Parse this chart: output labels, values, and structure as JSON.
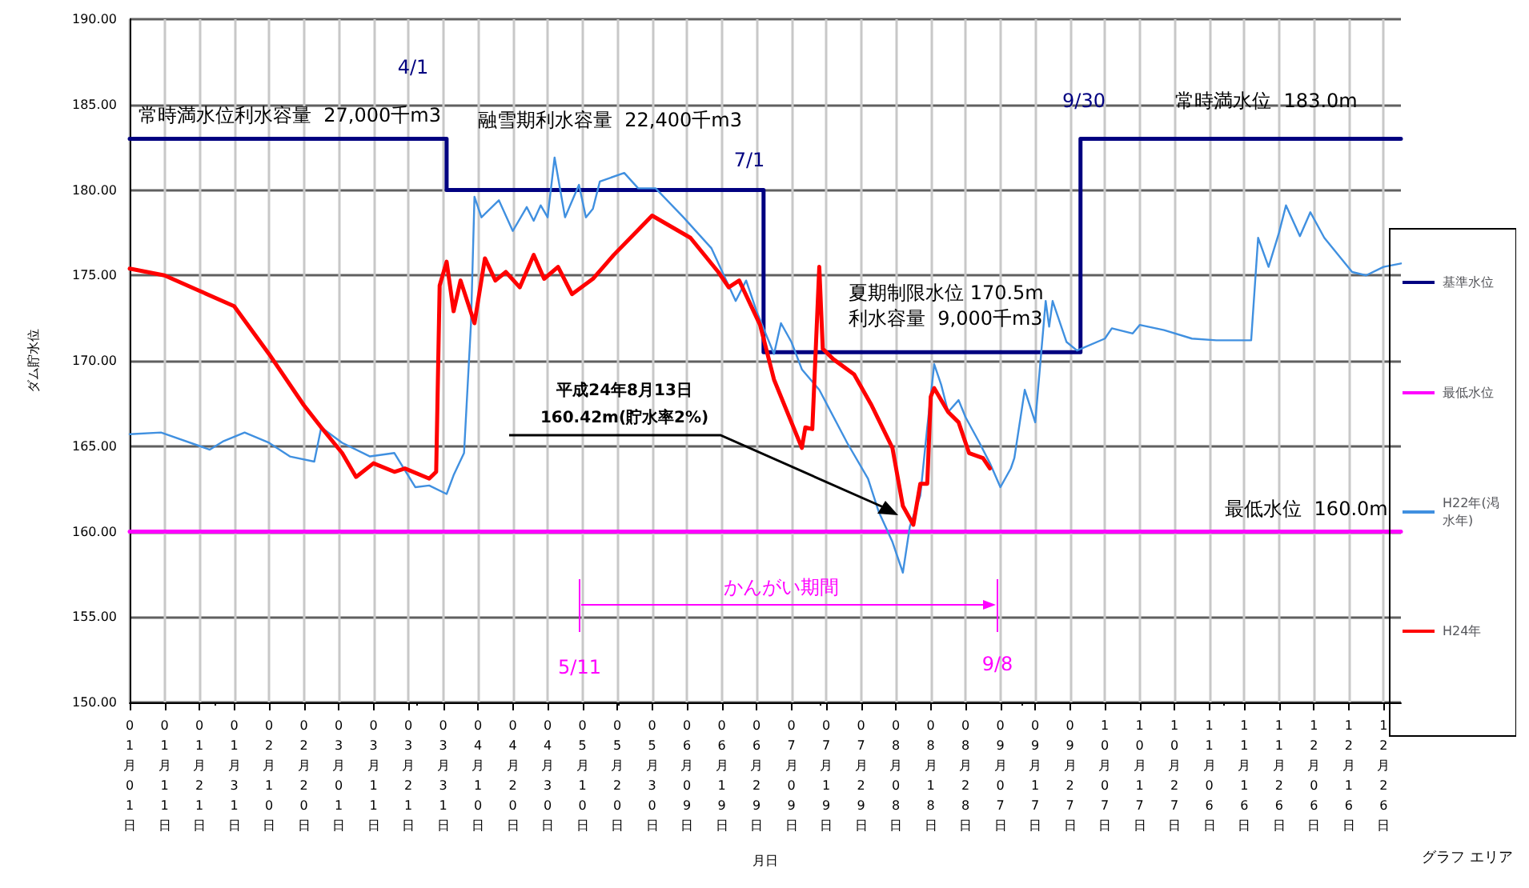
{
  "chart_data": {
    "type": "line",
    "ylabel": "ダム貯水位",
    "xlabel": "月日",
    "xlim": [
      "--01-01",
      "--12-31"
    ],
    "xticks": [
      {
        "value": "--01-01",
        "label": "01月01日"
      },
      {
        "value": "--01-11",
        "label": "01月11日"
      },
      {
        "value": "--01-21",
        "label": "01月21日"
      },
      {
        "value": "--01-31",
        "label": "01月31日"
      },
      {
        "value": "--02-10",
        "label": "02月10日"
      },
      {
        "value": "--02-20",
        "label": "02月20日"
      },
      {
        "value": "--03-01",
        "label": "03月01日"
      },
      {
        "value": "--03-11",
        "label": "03月11日"
      },
      {
        "value": "--03-21",
        "label": "03月21日"
      },
      {
        "value": "--03-31",
        "label": "03月31日"
      },
      {
        "value": "--04-10",
        "label": "04月10日"
      },
      {
        "value": "--04-20",
        "label": "04月20日"
      },
      {
        "value": "--04-30",
        "label": "04月30日"
      },
      {
        "value": "--05-10",
        "label": "05月10日"
      },
      {
        "value": "--05-20",
        "label": "05月20日"
      },
      {
        "value": "--05-30",
        "label": "05月30日"
      },
      {
        "value": "--06-09",
        "label": "06月09日"
      },
      {
        "value": "--06-19",
        "label": "06月19日"
      },
      {
        "value": "--06-29",
        "label": "06月29日"
      },
      {
        "value": "--07-09",
        "label": "07月09日"
      },
      {
        "value": "--07-19",
        "label": "07月19日"
      },
      {
        "value": "--07-29",
        "label": "07月29日"
      },
      {
        "value": "--08-08",
        "label": "08月08日"
      },
      {
        "value": "--08-18",
        "label": "08月18日"
      },
      {
        "value": "--08-28",
        "label": "08月28日"
      },
      {
        "value": "--09-07",
        "label": "09月07日"
      },
      {
        "value": "--09-17",
        "label": "09月17日"
      },
      {
        "value": "--09-27",
        "label": "09月27日"
      },
      {
        "value": "--10-07",
        "label": "10月07日"
      },
      {
        "value": "--10-17",
        "label": "10月17日"
      },
      {
        "value": "--10-27",
        "label": "10月27日"
      },
      {
        "value": "--11-06",
        "label": "11月06日"
      },
      {
        "value": "--11-16",
        "label": "11月16日"
      },
      {
        "value": "--11-26",
        "label": "11月26日"
      },
      {
        "value": "--12-06",
        "label": "12月06日"
      },
      {
        "value": "--12-16",
        "label": "12月16日"
      },
      {
        "value": "--12-26",
        "label": "12月26日"
      }
    ],
    "ylim": [
      150,
      190
    ],
    "yticks": [
      {
        "value": 150,
        "label": "150.00"
      },
      {
        "value": 155,
        "label": "155.00"
      },
      {
        "value": 160,
        "label": "160.00"
      },
      {
        "value": 165,
        "label": "165.00"
      },
      {
        "value": 170,
        "label": "170.00"
      },
      {
        "value": 175,
        "label": "175.00"
      },
      {
        "value": 180,
        "label": "180.00"
      },
      {
        "value": 185,
        "label": "185.00"
      },
      {
        "value": 190,
        "label": "190.00"
      }
    ],
    "grid": true,
    "legend": "right",
    "marker": "none",
    "line_style": "solid",
    "series": [
      {
        "name": "基準水位",
        "type": "step",
        "color": "#000080",
        "x": [
          "--01-01",
          "--04-01",
          "--07-01",
          "--09-30",
          "--12-31"
        ],
        "values": [
          183,
          180,
          170.5,
          183,
          183
        ]
      },
      {
        "name": "最低水位",
        "color": "#ff00ff",
        "x": [
          "--01-01",
          "--12-31"
        ],
        "values": [
          160,
          160
        ]
      },
      {
        "name": "H22年(渇水年)",
        "color": "#4090e0",
        "x": [
          "--01-01",
          "--01-10",
          "--01-24",
          "--01-28",
          "--02-03",
          "--02-10",
          "--02-16",
          "--02-23",
          "--02-25",
          "--03-02",
          "--03-10",
          "--03-17",
          "--03-23",
          "--03-27",
          "--04-01",
          "--04-03",
          "--04-06",
          "--04-08",
          "--04-09",
          "--04-11",
          "--04-16",
          "--04-20",
          "--04-24",
          "--04-26",
          "--04-28",
          "--04-30",
          "--05-02",
          "--05-05",
          "--05-09",
          "--05-11",
          "--05-13",
          "--05-15",
          "--05-22",
          "--05-26",
          "--05-31",
          "--06-08",
          "--06-16",
          "--06-23",
          "--06-26",
          "--06-29",
          "--07-04",
          "--07-06",
          "--07-09",
          "--07-12",
          "--07-17",
          "--07-25",
          "--07-31",
          "--08-03",
          "--08-07",
          "--08-10",
          "--08-12",
          "--08-15",
          "--08-17",
          "--08-19",
          "--08-21",
          "--08-23",
          "--08-26",
          "--08-28",
          "--09-01",
          "--09-04",
          "--09-07",
          "--09-10",
          "--09-11",
          "--09-14",
          "--09-17",
          "--09-20",
          "--09-21",
          "--09-22",
          "--09-26",
          "--09-29",
          "--10-07",
          "--10-09",
          "--10-15",
          "--10-17",
          "--10-24",
          "--11-01",
          "--11-08",
          "--11-18",
          "--11-20",
          "--11-23",
          "--11-26",
          "--11-28",
          "--12-02",
          "--12-05",
          "--12-09",
          "--12-17",
          "--12-21",
          "--12-26",
          "--12-31"
        ],
        "values": [
          165.7,
          165.8,
          164.8,
          165.3,
          165.8,
          165.2,
          164.4,
          164.1,
          166.1,
          165.2,
          164.4,
          164.6,
          162.6,
          162.7,
          162.2,
          163.3,
          164.6,
          172.2,
          179.6,
          178.4,
          179.4,
          177.6,
          179.0,
          178.2,
          179.1,
          178.4,
          181.9,
          178.4,
          180.3,
          178.4,
          178.9,
          180.5,
          181.0,
          180.1,
          180.1,
          178.4,
          176.6,
          173.5,
          174.7,
          172.9,
          170.4,
          172.2,
          171.1,
          169.5,
          168.3,
          165.2,
          163.1,
          161.2,
          159.4,
          157.6,
          160.3,
          162.1,
          166.1,
          169.8,
          168.6,
          167.0,
          167.7,
          166.7,
          165.2,
          164.0,
          162.6,
          163.7,
          164.3,
          168.3,
          166.4,
          173.5,
          172.0,
          173.5,
          171.1,
          170.6,
          171.3,
          171.9,
          171.6,
          172.1,
          171.8,
          171.3,
          171.2,
          171.2,
          177.2,
          175.5,
          177.5,
          179.1,
          177.3,
          178.7,
          177.2,
          175.2,
          175.0,
          175.5,
          175.7
        ]
      },
      {
        "name": "H24年",
        "color": "#ff0000",
        "x": [
          "--01-01",
          "--01-11",
          "--01-21",
          "--01-31",
          "--02-10",
          "--02-20",
          "--02-25",
          "--03-02",
          "--03-06",
          "--03-11",
          "--03-17",
          "--03-20",
          "--03-27",
          "--03-29",
          "--03-30",
          "--04-01",
          "--04-03",
          "--04-05",
          "--04-09",
          "--04-12",
          "--04-15",
          "--04-18",
          "--04-22",
          "--04-26",
          "--04-29",
          "--05-03",
          "--05-07",
          "--05-13",
          "--05-19",
          "--05-30",
          "--06-10",
          "--06-18",
          "--06-21",
          "--06-24",
          "--06-30",
          "--07-04",
          "--07-12",
          "--07-13",
          "--07-15",
          "--07-17",
          "--07-18",
          "--07-21",
          "--07-27",
          "--08-01",
          "--08-07",
          "--08-10",
          "--08-13",
          "--08-15",
          "--08-17",
          "--08-18",
          "--08-19",
          "--08-23",
          "--08-26",
          "--08-29",
          "--09-02",
          "--09-04"
        ],
        "values": [
          175.4,
          175.0,
          174.1,
          173.2,
          170.4,
          167.4,
          166.1,
          164.6,
          163.2,
          164.0,
          163.5,
          163.7,
          163.1,
          163.5,
          174.4,
          175.8,
          172.9,
          174.7,
          172.2,
          176.0,
          174.7,
          175.2,
          174.3,
          176.2,
          174.8,
          175.5,
          173.9,
          174.8,
          176.2,
          178.5,
          177.2,
          175.2,
          174.3,
          174.7,
          172.1,
          168.9,
          164.9,
          166.1,
          166.0,
          175.5,
          170.7,
          170.1,
          169.2,
          167.4,
          164.9,
          161.5,
          160.4,
          162.8,
          162.8,
          167.9,
          168.4,
          167.0,
          166.4,
          164.6,
          164.3,
          163.7
        ]
      }
    ],
    "annotations": [
      "常時満水位利水容量  27,000千m3",
      "融雪期利水容量  22,400千m3",
      "4/1",
      "7/1",
      "9/30",
      "常時満水位  183.0m",
      "夏期制限水位 170.5m",
      "利水容量  9,000千m3",
      "最低水位  160.0m",
      "平成24年8月13日\n160.42m(貯水率2%)",
      "5/11",
      "9/8",
      "かんがい期間",
      "グラフ エリア"
    ]
  }
}
